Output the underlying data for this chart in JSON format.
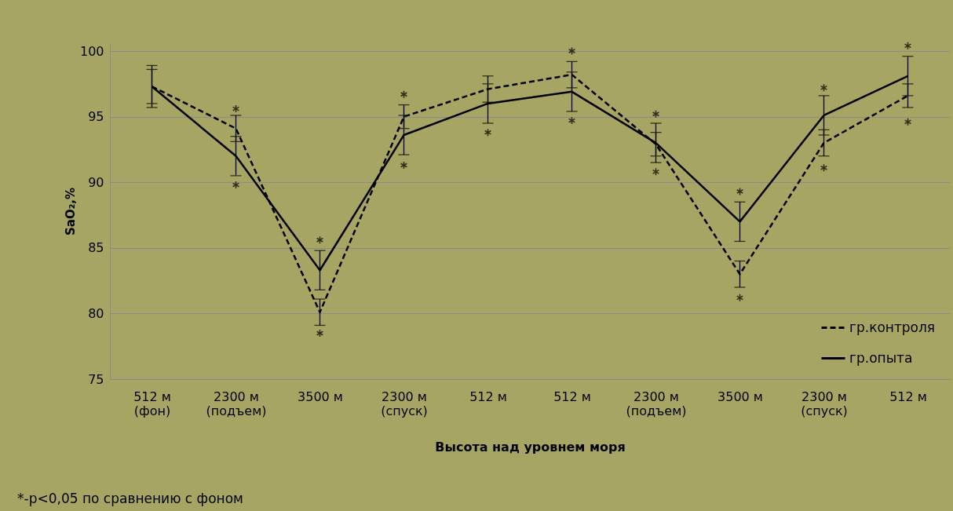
{
  "chart_data": {
    "type": "line",
    "xlabel": "Высота над уровнем моря",
    "ylabel": "SaO₂,%",
    "categories": [
      "512 м\n(фон)",
      "2300 м\n(подъем)",
      "3500 м",
      "2300 м\n(спуск)",
      "512 м",
      "512 м",
      "2300 м\n(подъем)",
      "3500 м",
      "2300 м\n(спуск)",
      "512 м"
    ],
    "series": [
      {
        "name": "гр.контроля",
        "color": "#000000",
        "line_style": "dashed",
        "values": [
          97.3,
          94.1,
          80.1,
          95.0,
          97.1,
          98.2,
          92.9,
          83.0,
          93.0,
          96.6
        ],
        "errors": [
          1.3,
          1.0,
          1.0,
          0.9,
          1.0,
          1.0,
          0.9,
          1.0,
          1.0,
          0.9
        ]
      },
      {
        "name": "гр.опыта",
        "color": "#000000",
        "line_style": "solid",
        "values": [
          97.3,
          92.0,
          83.3,
          93.6,
          96.0,
          96.9,
          93.0,
          87.0,
          95.1,
          98.1
        ],
        "errors": [
          1.6,
          1.5,
          1.5,
          1.5,
          1.5,
          1.5,
          1.5,
          1.5,
          1.5,
          1.5
        ]
      },
      {
        "type": "scatter",
        "marker": "cross",
        "color": "#000000",
        "values": [
          null,
          95.6,
          85.6,
          96.7,
          null,
          100.0,
          95.2,
          89.3,
          97.2,
          100.4
        ]
      },
      {
        "type": "scatter",
        "marker": "cross",
        "color": "#000000",
        "values": [
          null,
          89.8,
          78.5,
          91.3,
          93.8,
          94.7,
          90.8,
          81.2,
          91.1,
          94.6
        ]
      }
    ],
    "ylim": [
      75,
      100.6
    ],
    "yticks": [
      75,
      80,
      85,
      90,
      95,
      100
    ],
    "grid": "y",
    "legend": "bottom right",
    "marker": "none",
    "annotations": [
      "*-p<0,05 по сравнению с фоном"
    ]
  }
}
